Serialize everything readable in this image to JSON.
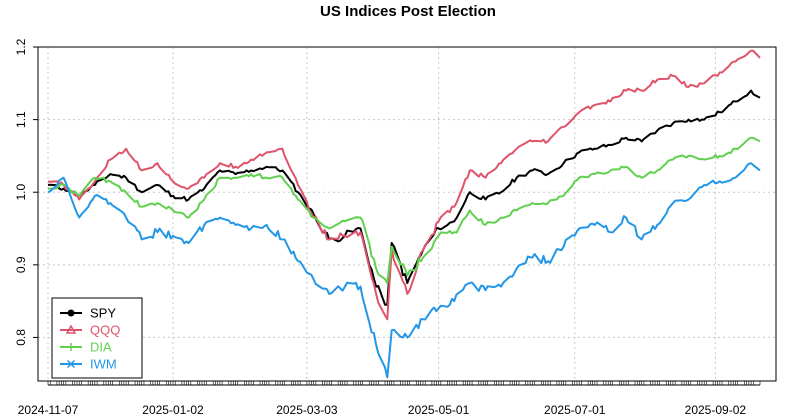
{
  "chart_data": {
    "type": "line",
    "title": "US Indices Post Election",
    "xlabel": "",
    "ylabel": "",
    "ylim": [
      0.74,
      1.2
    ],
    "yticks": [
      0.8,
      0.9,
      1.0,
      1.1,
      1.2
    ],
    "ytick_labels": [
      "0.8",
      "0.9",
      "1.0",
      "1.1",
      "1.2"
    ],
    "xlim": [
      "2024-11-07",
      "2025-09-22"
    ],
    "xticks": [
      {
        "date": "2024-11-07",
        "label": "2024-11-07"
      },
      {
        "date": "2025-01-02",
        "label": "2025-01-02"
      },
      {
        "date": "2025-03-03",
        "label": "2025-03-03"
      },
      {
        "date": "2025-05-01",
        "label": "2025-05-01"
      },
      {
        "date": "2025-07-01",
        "label": "2025-07-01"
      },
      {
        "date": "2025-09-02",
        "label": "2025-09-02"
      }
    ],
    "grid": true,
    "legend_position": "bottom-left",
    "series": [
      {
        "name": "SPY",
        "color": "#000000",
        "marker": "circle",
        "x": [
          "2024-11-07",
          "2024-11-14",
          "2024-11-21",
          "2024-11-28",
          "2024-12-05",
          "2024-12-12",
          "2024-12-19",
          "2024-12-26",
          "2025-01-02",
          "2025-01-09",
          "2025-01-16",
          "2025-01-23",
          "2025-01-30",
          "2025-02-06",
          "2025-02-13",
          "2025-02-20",
          "2025-02-27",
          "2025-03-06",
          "2025-03-13",
          "2025-03-20",
          "2025-03-27",
          "2025-04-03",
          "2025-04-08",
          "2025-04-10",
          "2025-04-17",
          "2025-04-24",
          "2025-05-01",
          "2025-05-08",
          "2025-05-15",
          "2025-05-22",
          "2025-05-29",
          "2025-06-05",
          "2025-06-12",
          "2025-06-19",
          "2025-06-26",
          "2025-07-03",
          "2025-07-10",
          "2025-07-17",
          "2025-07-24",
          "2025-07-31",
          "2025-08-07",
          "2025-08-14",
          "2025-08-21",
          "2025-08-28",
          "2025-09-04",
          "2025-09-11",
          "2025-09-18",
          "2025-09-22"
        ],
        "values": [
          1.01,
          1.005,
          0.995,
          1.01,
          1.025,
          1.02,
          1.0,
          1.01,
          0.995,
          0.99,
          1.005,
          1.03,
          1.025,
          1.03,
          1.035,
          1.03,
          1.0,
          0.97,
          0.935,
          0.94,
          0.95,
          0.87,
          0.845,
          0.93,
          0.875,
          0.92,
          0.95,
          0.96,
          1.0,
          0.99,
          1.0,
          1.02,
          1.03,
          1.025,
          1.04,
          1.055,
          1.06,
          1.065,
          1.075,
          1.07,
          1.085,
          1.095,
          1.1,
          1.1,
          1.11,
          1.125,
          1.14,
          1.13
        ]
      },
      {
        "name": "QQQ",
        "color": "#DF536B",
        "marker": "triangle",
        "x": [
          "2024-11-07",
          "2024-11-14",
          "2024-11-21",
          "2024-11-28",
          "2024-12-05",
          "2024-12-12",
          "2024-12-19",
          "2024-12-26",
          "2025-01-02",
          "2025-01-09",
          "2025-01-16",
          "2025-01-23",
          "2025-01-30",
          "2025-02-06",
          "2025-02-13",
          "2025-02-20",
          "2025-02-27",
          "2025-03-06",
          "2025-03-13",
          "2025-03-20",
          "2025-03-27",
          "2025-04-03",
          "2025-04-08",
          "2025-04-10",
          "2025-04-17",
          "2025-04-24",
          "2025-05-01",
          "2025-05-08",
          "2025-05-15",
          "2025-05-22",
          "2025-05-29",
          "2025-06-05",
          "2025-06-12",
          "2025-06-19",
          "2025-06-26",
          "2025-07-03",
          "2025-07-10",
          "2025-07-17",
          "2025-07-24",
          "2025-07-31",
          "2025-08-07",
          "2025-08-14",
          "2025-08-21",
          "2025-08-28",
          "2025-09-04",
          "2025-09-11",
          "2025-09-18",
          "2025-09-22"
        ],
        "values": [
          1.015,
          1.01,
          0.99,
          1.015,
          1.045,
          1.06,
          1.03,
          1.04,
          1.015,
          1.005,
          1.02,
          1.04,
          1.035,
          1.045,
          1.055,
          1.06,
          1.01,
          0.965,
          0.935,
          0.94,
          0.945,
          0.86,
          0.825,
          0.92,
          0.86,
          0.92,
          0.96,
          0.98,
          1.03,
          1.02,
          1.04,
          1.06,
          1.07,
          1.07,
          1.09,
          1.11,
          1.12,
          1.125,
          1.14,
          1.14,
          1.155,
          1.16,
          1.145,
          1.15,
          1.165,
          1.18,
          1.195,
          1.185
        ]
      },
      {
        "name": "DIA",
        "color": "#61D04F",
        "marker": "plus",
        "x": [
          "2024-11-07",
          "2024-11-14",
          "2024-11-21",
          "2024-11-28",
          "2024-12-05",
          "2024-12-12",
          "2024-12-19",
          "2024-12-26",
          "2025-01-02",
          "2025-01-09",
          "2025-01-16",
          "2025-01-23",
          "2025-01-30",
          "2025-02-06",
          "2025-02-13",
          "2025-02-20",
          "2025-02-27",
          "2025-03-06",
          "2025-03-13",
          "2025-03-20",
          "2025-03-27",
          "2025-04-03",
          "2025-04-08",
          "2025-04-10",
          "2025-04-17",
          "2025-04-24",
          "2025-05-01",
          "2025-05-08",
          "2025-05-15",
          "2025-05-22",
          "2025-05-29",
          "2025-06-05",
          "2025-06-12",
          "2025-06-19",
          "2025-06-26",
          "2025-07-03",
          "2025-07-10",
          "2025-07-17",
          "2025-07-24",
          "2025-07-31",
          "2025-08-07",
          "2025-08-14",
          "2025-08-21",
          "2025-08-28",
          "2025-09-04",
          "2025-09-11",
          "2025-09-18",
          "2025-09-22"
        ],
        "values": [
          1.005,
          1.01,
          0.995,
          1.02,
          1.015,
          1.0,
          0.98,
          0.985,
          0.975,
          0.965,
          0.99,
          1.02,
          1.02,
          1.025,
          1.02,
          1.02,
          0.99,
          0.965,
          0.95,
          0.96,
          0.965,
          0.895,
          0.875,
          0.925,
          0.885,
          0.91,
          0.94,
          0.945,
          0.975,
          0.955,
          0.965,
          0.975,
          0.985,
          0.985,
          0.995,
          1.02,
          1.025,
          1.03,
          1.035,
          1.02,
          1.03,
          1.045,
          1.05,
          1.045,
          1.05,
          1.06,
          1.075,
          1.07
        ]
      },
      {
        "name": "IWM",
        "color": "#2297E6",
        "marker": "cross",
        "x": [
          "2024-11-07",
          "2024-11-14",
          "2024-11-21",
          "2024-11-28",
          "2024-12-05",
          "2024-12-12",
          "2024-12-19",
          "2024-12-26",
          "2025-01-02",
          "2025-01-09",
          "2025-01-16",
          "2025-01-23",
          "2025-01-30",
          "2025-02-06",
          "2025-02-13",
          "2025-02-20",
          "2025-02-27",
          "2025-03-06",
          "2025-03-13",
          "2025-03-20",
          "2025-03-27",
          "2025-04-03",
          "2025-04-08",
          "2025-04-10",
          "2025-04-17",
          "2025-04-24",
          "2025-05-01",
          "2025-05-08",
          "2025-05-15",
          "2025-05-22",
          "2025-05-29",
          "2025-06-05",
          "2025-06-12",
          "2025-06-19",
          "2025-06-26",
          "2025-07-03",
          "2025-07-10",
          "2025-07-17",
          "2025-07-24",
          "2025-07-31",
          "2025-08-07",
          "2025-08-14",
          "2025-08-21",
          "2025-08-28",
          "2025-09-04",
          "2025-09-11",
          "2025-09-18",
          "2025-09-22"
        ],
        "values": [
          1.0,
          1.02,
          0.965,
          0.995,
          0.985,
          0.965,
          0.935,
          0.945,
          0.94,
          0.93,
          0.955,
          0.965,
          0.955,
          0.95,
          0.955,
          0.935,
          0.905,
          0.88,
          0.86,
          0.87,
          0.87,
          0.79,
          0.745,
          0.81,
          0.8,
          0.825,
          0.84,
          0.85,
          0.875,
          0.865,
          0.87,
          0.895,
          0.91,
          0.905,
          0.925,
          0.95,
          0.955,
          0.945,
          0.965,
          0.935,
          0.955,
          0.985,
          0.99,
          1.01,
          1.015,
          1.02,
          1.04,
          1.03
        ]
      }
    ]
  }
}
